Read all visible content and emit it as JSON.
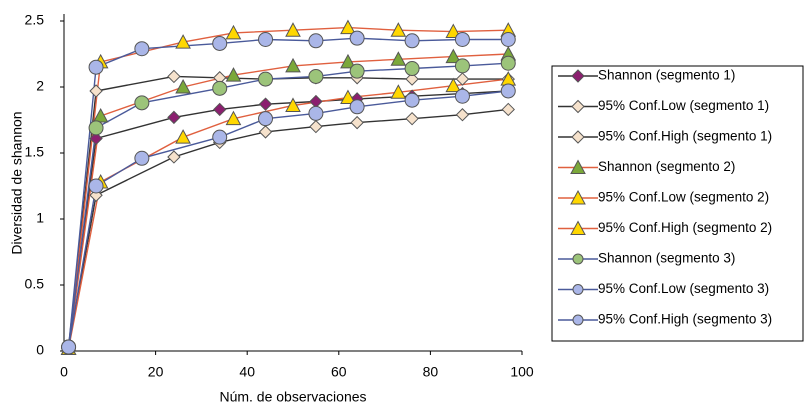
{
  "chart_data": {
    "type": "line",
    "x_label": "Núm. de observaciones",
    "y_label": "Diversidad de shannon",
    "xlim": [
      0,
      100
    ],
    "xticks": [
      0,
      20,
      40,
      60,
      80,
      100
    ],
    "ylim": [
      0,
      2.5
    ],
    "yticks": [
      0,
      0.5,
      1,
      1.5,
      2,
      2.5
    ],
    "grid": false,
    "legend": "right",
    "series": [
      {
        "name": "Shannon (segmento 1)",
        "color": "#333333",
        "marker": "diamond",
        "marker_color": "#8b1f6f",
        "x": [
          1,
          7,
          24,
          34,
          44,
          55,
          64,
          76,
          87,
          97
        ],
        "values": [
          0.03,
          1.61,
          1.77,
          1.83,
          1.87,
          1.89,
          1.91,
          1.93,
          1.95,
          1.97
        ]
      },
      {
        "name": "95% Conf.Low (segmento 1)",
        "color": "#333333",
        "marker": "diamond",
        "marker_color": "#f6e2cc",
        "x": [
          1,
          7,
          24,
          34,
          44,
          55,
          64,
          76,
          87,
          97
        ],
        "values": [
          0.03,
          1.18,
          1.47,
          1.58,
          1.66,
          1.7,
          1.73,
          1.76,
          1.79,
          1.83
        ]
      },
      {
        "name": "95% Conf.High (segmento 1)",
        "color": "#333333",
        "marker": "diamond",
        "marker_color": "#f6e2cc",
        "x": [
          1,
          7,
          24,
          34,
          44,
          55,
          64,
          76,
          87,
          97
        ],
        "values": [
          0.03,
          1.97,
          2.08,
          2.07,
          2.06,
          2.07,
          2.07,
          2.06,
          2.06,
          2.06
        ]
      },
      {
        "name": "Shannon (segmento 2)",
        "color": "#e0603f",
        "marker": "triangle",
        "marker_color": "#7ba83a",
        "x": [
          1,
          8,
          26,
          37,
          50,
          62,
          73,
          85,
          97
        ],
        "values": [
          0.02,
          1.78,
          2.0,
          2.09,
          2.16,
          2.19,
          2.21,
          2.23,
          2.25
        ]
      },
      {
        "name": "95% Conf.Low (segmento 2)",
        "color": "#e0603f",
        "marker": "triangle",
        "marker_color": "#ffd700",
        "x": [
          1,
          8,
          26,
          37,
          50,
          62,
          73,
          85,
          97
        ],
        "values": [
          0.02,
          1.28,
          1.62,
          1.76,
          1.86,
          1.92,
          1.96,
          2.01,
          2.06
        ]
      },
      {
        "name": "95% Conf.High (segmento 2)",
        "color": "#e0603f",
        "marker": "triangle",
        "marker_color": "#ffd700",
        "x": [
          1,
          8,
          26,
          37,
          50,
          62,
          73,
          85,
          97
        ],
        "values": [
          0.02,
          2.19,
          2.34,
          2.41,
          2.43,
          2.45,
          2.43,
          2.42,
          2.43
        ]
      },
      {
        "name": "Shannon (segmento 3)",
        "color": "#4a5a9a",
        "marker": "circle",
        "marker_color": "#9cc47a",
        "x": [
          1,
          7,
          17,
          34,
          44,
          55,
          64,
          76,
          87,
          97
        ],
        "values": [
          0.03,
          1.69,
          1.88,
          1.99,
          2.06,
          2.08,
          2.12,
          2.14,
          2.16,
          2.18
        ]
      },
      {
        "name": "95% Conf.Low (segmento 3)",
        "color": "#4a5a9a",
        "marker": "circle",
        "marker_color": "#aab6e8",
        "x": [
          1,
          7,
          17,
          34,
          44,
          55,
          64,
          76,
          87,
          97
        ],
        "values": [
          0.03,
          1.25,
          1.46,
          1.62,
          1.76,
          1.8,
          1.85,
          1.9,
          1.93,
          1.97
        ]
      },
      {
        "name": "95% Conf.High (segmento 3)",
        "color": "#4a5a9a",
        "marker": "circle",
        "marker_color": "#aab6e8",
        "x": [
          1,
          7,
          17,
          34,
          44,
          55,
          64,
          76,
          87,
          97
        ],
        "values": [
          0.03,
          2.15,
          2.29,
          2.33,
          2.36,
          2.35,
          2.37,
          2.35,
          2.36,
          2.36
        ]
      }
    ]
  }
}
